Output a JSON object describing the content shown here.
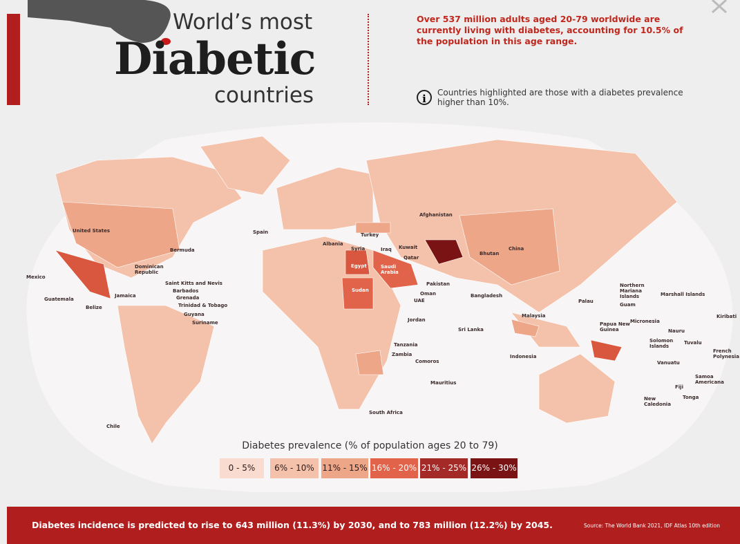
{
  "header": {
    "title_top": "World’s most",
    "title_main": "Diabetic",
    "title_bottom": "countries",
    "stat": "Over 537 million adults aged 20-79 worldwide are currently living with diabetes, accounting for 10.5% of the population in this age range.",
    "note": "Countries highlighted are those with a diabetes prevalence higher than 10%."
  },
  "labels": [
    "United States",
    "Bermuda",
    "Mexico",
    "Dominican Republic",
    "Saint Kitts and Nevis",
    "Barbados",
    "Grenada",
    "Trinidad & Tobago",
    "Guyana",
    "Suriname",
    "Jamaica",
    "Guatemala",
    "Belize",
    "Chile",
    "Spain",
    "Albania",
    "Syria",
    "Turkey",
    "Iraq",
    "Kuwait",
    "Qatar",
    "Egypt",
    "Saudi Arabia",
    "Sudan",
    "Afghanistan",
    "Pakistan",
    "Oman",
    "UAE",
    "Jordan",
    "Bhutan",
    "China",
    "Bangladesh",
    "Sri Lanka",
    "Malaysia",
    "Indonesia",
    "Tanzania",
    "Zambia",
    "Comoros",
    "Mauritius",
    "South Africa",
    "Palau",
    "Northern Mariana Islands",
    "Guam",
    "Marshall Islands",
    "Micronesia",
    "Papua New Guinea",
    "Nauru",
    "Solomon Islands",
    "Tuvalu",
    "Kiribati",
    "French Polynesia",
    "Vanuatu",
    "Samoa Americana",
    "Fiji",
    "Tonga",
    "New Caledonia"
  ],
  "legend": {
    "title": "Diabetes prevalence (% of population ages 20 to 79)",
    "items": [
      {
        "label": "0 - 5%",
        "color": "#fadbcf"
      },
      {
        "label": "6% - 10%",
        "color": "#f4c2ab"
      },
      {
        "label": "11% - 15%",
        "color": "#eea688"
      },
      {
        "label": "16% - 20%",
        "color": "#e0634a"
      },
      {
        "label": "21% - 25%",
        "color": "#a42a28"
      },
      {
        "label": "26% - 30%",
        "color": "#7a1414"
      }
    ]
  },
  "footer": {
    "text": "Diabetes incidence is predicted to rise to 643 million (11.3%) by 2030, and to 783 million (12.2%) by 2045.",
    "source": "Source: The World Bank 2021, IDF Atlas 10th edition"
  }
}
